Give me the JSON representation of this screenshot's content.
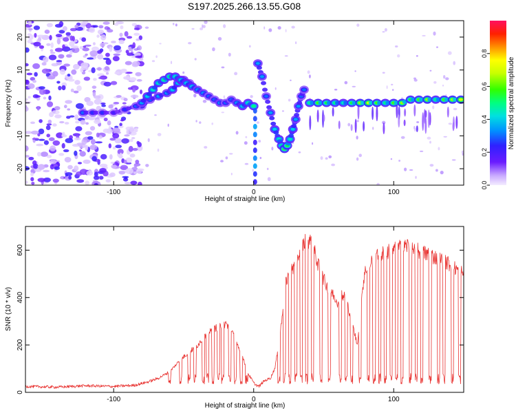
{
  "title": "S197.2025.266.13.55.G08",
  "chart_data": [
    {
      "type": "heatmap",
      "name": "spectrogram",
      "xlabel": "Height of straight line (km)",
      "ylabel": "Frequency (Hz)",
      "xlim": [
        -163,
        150
      ],
      "ylim": [
        -25,
        25
      ],
      "xticks": [
        "-100",
        "0",
        "100"
      ],
      "xtick_values": [
        -100,
        0,
        100
      ],
      "yticks": [
        "20",
        "10",
        "0",
        "-10",
        "-20"
      ],
      "ytick_values": [
        20,
        10,
        0,
        -10,
        -20
      ],
      "colorbar": {
        "label": "Normalized spectral amplitude",
        "range": [
          0,
          1
        ],
        "ticks": [
          "0.0",
          "0.2",
          "0.4",
          "0.6",
          "0.8"
        ],
        "tick_values": [
          0,
          0.2,
          0.4,
          0.6,
          0.8
        ]
      },
      "noise_region_x": [
        -163,
        -80
      ],
      "ridge": {
        "x": [
          -122,
          -115,
          -108,
          -100,
          -92,
          -84,
          -80,
          -76,
          -72,
          -68,
          -64,
          -60,
          -56,
          -52,
          -48,
          -44,
          -40,
          -36,
          -32,
          -28,
          -24,
          -20,
          -16,
          -12,
          -8,
          -4,
          0
        ],
        "freq": [
          -3,
          -3,
          -3,
          -3,
          -2,
          -1,
          0,
          2,
          4,
          6,
          7,
          8,
          8,
          7,
          6,
          5,
          4,
          3,
          2,
          1,
          0,
          0,
          1,
          0,
          -1,
          0,
          -1
        ],
        "amp": [
          0.3,
          0.25,
          0.25,
          0.2,
          0.25,
          0.3,
          0.35,
          0.4,
          0.45,
          0.45,
          0.5,
          0.5,
          0.45,
          0.4,
          0.4,
          0.4,
          0.35,
          0.35,
          0.3,
          0.3,
          0.35,
          0.3,
          0.3,
          0.35,
          0.4,
          0.45,
          0.5
        ]
      },
      "ridge2": {
        "x": [
          -80,
          -74,
          -68,
          -62,
          -58,
          -54,
          -50,
          -46
        ],
        "freq": [
          -1,
          1,
          2,
          3,
          4,
          6,
          7,
          6
        ],
        "amp": [
          0.25,
          0.3,
          0.35,
          0.35,
          0.4,
          0.4,
          0.35,
          0.3
        ]
      },
      "dip": {
        "x": [
          3,
          6,
          9,
          12,
          15,
          18,
          20,
          22,
          24,
          26,
          28,
          30,
          32,
          34,
          36
        ],
        "freq": [
          12,
          8,
          2,
          -3,
          -8,
          -11,
          -13,
          -14,
          -13,
          -11,
          -8,
          -5,
          -1,
          2,
          4
        ],
        "amp": [
          0.35,
          0.35,
          0.3,
          0.35,
          0.4,
          0.45,
          0.5,
          0.6,
          0.55,
          0.45,
          0.4,
          0.35,
          0.35,
          0.3,
          0.3
        ]
      },
      "flat": {
        "x": [
          40,
          46,
          52,
          58,
          64,
          70,
          76,
          82,
          88,
          94,
          100,
          106,
          112,
          118,
          124,
          130,
          136,
          142,
          148
        ],
        "freq": [
          0,
          0,
          0,
          0,
          0,
          0,
          0,
          0,
          0,
          0,
          0,
          0,
          1,
          1,
          1,
          1,
          1,
          1,
          1
        ],
        "amp": [
          0.5,
          0.6,
          0.55,
          0.5,
          0.45,
          0.55,
          0.65,
          0.7,
          0.6,
          0.5,
          0.6,
          0.65,
          0.55,
          0.6,
          0.65,
          0.5,
          0.6,
          0.65,
          0.7
        ]
      }
    },
    {
      "type": "line",
      "name": "snr",
      "xlabel": "Height of straight line (km)",
      "ylabel": "SNR (10 * v/v)",
      "xlim": [
        -163,
        150
      ],
      "ylim": [
        0,
        700
      ],
      "xticks": [
        "-100",
        "0",
        "100"
      ],
      "xtick_values": [
        -100,
        0,
        100
      ],
      "yticks": [
        "0",
        "200",
        "400",
        "600"
      ],
      "ytick_values": [
        0,
        200,
        400,
        600
      ],
      "color": "#e8312f",
      "series": [
        {
          "name": "SNR",
          "x": [
            -163,
            -140,
            -120,
            -100,
            -85,
            -75,
            -68,
            -62,
            -58,
            -55,
            -52,
            -48,
            -44,
            -40,
            -36,
            -32,
            -28,
            -24,
            -20,
            -16,
            -12,
            -8,
            -4,
            0,
            2,
            4,
            6,
            8,
            10,
            12,
            15,
            18,
            20,
            22,
            25,
            28,
            30,
            32,
            35,
            38,
            40,
            42,
            45,
            48,
            50,
            52,
            55,
            58,
            60,
            62,
            65,
            68,
            70,
            72,
            74,
            76,
            78,
            80,
            85,
            90,
            95,
            100,
            105,
            110,
            115,
            120,
            125,
            130,
            135,
            140,
            145,
            150
          ],
          "y": [
            25,
            22,
            28,
            25,
            30,
            45,
            60,
            80,
            100,
            120,
            140,
            160,
            180,
            200,
            230,
            250,
            270,
            280,
            290,
            270,
            200,
            150,
            80,
            40,
            30,
            25,
            40,
            50,
            55,
            60,
            100,
            200,
            300,
            450,
            500,
            520,
            550,
            580,
            620,
            650,
            640,
            620,
            560,
            500,
            480,
            450,
            430,
            400,
            380,
            420,
            400,
            350,
            300,
            250,
            200,
            350,
            450,
            520,
            560,
            580,
            590,
            600,
            610,
            620,
            600,
            590,
            580,
            570,
            560,
            540,
            520,
            500
          ]
        }
      ],
      "dropouts_x": [
        -60,
        -52,
        -46,
        -42,
        -36,
        -33,
        -29,
        -25,
        -22,
        -17,
        -13,
        -9,
        -5,
        18,
        22,
        26,
        30,
        34,
        38,
        42,
        48,
        54,
        62,
        66,
        70,
        76,
        82,
        86,
        90,
        94,
        98,
        102,
        106,
        112,
        116,
        120,
        126,
        132,
        136,
        142,
        147
      ]
    }
  ]
}
